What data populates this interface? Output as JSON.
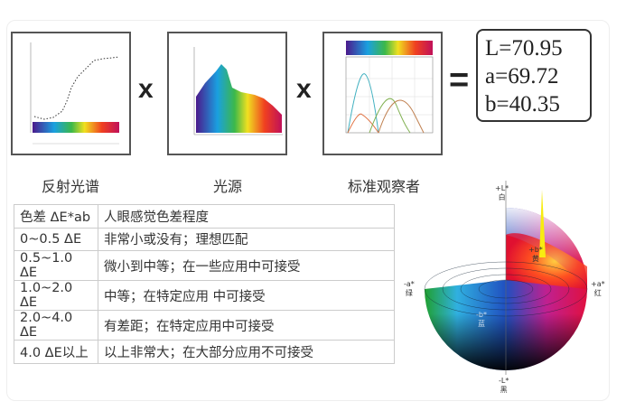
{
  "formula": {
    "panels": [
      {
        "label": "反射光谱",
        "chart": "reflectance-spectrum"
      },
      {
        "label": "光源",
        "chart": "light-source-spectrum"
      },
      {
        "label": "标准观察者",
        "chart": "standard-observer-curves"
      }
    ],
    "operators": [
      "x",
      "x",
      "="
    ],
    "result": {
      "L": "L=70.95",
      "a": "a=69.72",
      "b": "b=40.35"
    }
  },
  "table": {
    "headers": [
      "色差 ΔE*ab",
      "人眼感觉色差程度"
    ],
    "rows": [
      [
        "0~0.5 ΔE",
        "非常小或没有；理想匹配"
      ],
      [
        "0.5~1.0 ΔE",
        "微小到中等；在一些应用中可接受"
      ],
      [
        "1.0~2.0 ΔE",
        "中等；在特定应用 中可接受"
      ],
      [
        "2.0~4.0 ΔE",
        "有差距；在特定应用中可接受"
      ],
      [
        "4.0 ΔE以上",
        "以上非常大；在大部分应用不可接受"
      ]
    ]
  },
  "color_space": {
    "plus_L": "+L*",
    "white": "白",
    "minus_L": "-L*",
    "black": "黑",
    "plus_a": "+a*",
    "red": "红",
    "minus_a": "-a*",
    "green": "绿",
    "plus_b": "+b*",
    "yellow": "黄",
    "minus_b": "-b*",
    "blue": "蓝"
  }
}
